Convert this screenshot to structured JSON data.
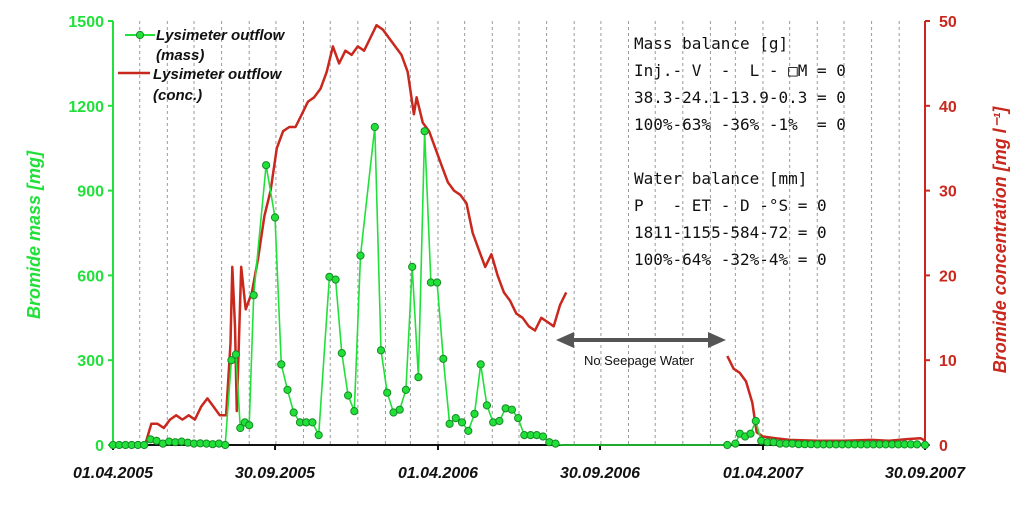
{
  "chart_data": {
    "type": "line",
    "title": "",
    "xlabel": "",
    "ylabel_left": "Bromide mass [mg]",
    "ylabel_right": "Bromide concentration [mg l⁻¹]",
    "x_ticks": [
      "01.04.2005",
      "30.09.2005",
      "01.04.2006",
      "30.09.2006",
      "01.04.2007",
      "30.09.2007"
    ],
    "x_range": [
      "2005-04-01",
      "2007-09-30"
    ],
    "ylim_left": [
      0,
      1500
    ],
    "ylim_right": [
      0,
      50
    ],
    "y_ticks_left": [
      0,
      300,
      600,
      900,
      1200,
      1500
    ],
    "y_ticks_right": [
      0,
      10,
      20,
      30,
      40,
      50
    ],
    "grid": "vertical dashed",
    "legend_position": "top-left",
    "colors": {
      "mass": "#22e03a",
      "conc": "#c8281e"
    },
    "series": [
      {
        "name": "Lysimeter outflow (mass)",
        "axis": "left",
        "marker": "circle",
        "points": [
          [
            "2005-04-01",
            0
          ],
          [
            "2005-04-08",
            0
          ],
          [
            "2005-04-15",
            0
          ],
          [
            "2005-04-22",
            0
          ],
          [
            "2005-04-29",
            0
          ],
          [
            "2005-05-06",
            0
          ],
          [
            "2005-05-13",
            20
          ],
          [
            "2005-05-20",
            15
          ],
          [
            "2005-05-27",
            5
          ],
          [
            "2005-06-03",
            12
          ],
          [
            "2005-06-10",
            10
          ],
          [
            "2005-06-17",
            12
          ],
          [
            "2005-06-24",
            8
          ],
          [
            "2005-07-01",
            5
          ],
          [
            "2005-07-08",
            6
          ],
          [
            "2005-07-15",
            5
          ],
          [
            "2005-07-22",
            3
          ],
          [
            "2005-07-29",
            5
          ],
          [
            "2005-08-05",
            0
          ],
          [
            "2005-08-12",
            300
          ],
          [
            "2005-08-17",
            320
          ],
          [
            "2005-08-22",
            60
          ],
          [
            "2005-08-27",
            80
          ],
          [
            "2005-09-01",
            70
          ],
          [
            "2005-09-06",
            530
          ],
          [
            "2005-09-20",
            990
          ],
          [
            "2005-09-30",
            805
          ],
          [
            "2005-10-07",
            285
          ],
          [
            "2005-10-14",
            195
          ],
          [
            "2005-10-21",
            115
          ],
          [
            "2005-10-28",
            80
          ],
          [
            "2005-11-04",
            80
          ],
          [
            "2005-11-11",
            80
          ],
          [
            "2005-11-18",
            35
          ],
          [
            "2005-11-30",
            595
          ],
          [
            "2005-12-07",
            585
          ],
          [
            "2005-12-14",
            325
          ],
          [
            "2005-12-21",
            175
          ],
          [
            "2005-12-28",
            120
          ],
          [
            "2006-01-04",
            670
          ],
          [
            "2006-01-20",
            1125
          ],
          [
            "2006-01-27",
            335
          ],
          [
            "2006-02-03",
            185
          ],
          [
            "2006-02-10",
            115
          ],
          [
            "2006-02-17",
            125
          ],
          [
            "2006-02-24",
            195
          ],
          [
            "2006-03-03",
            630
          ],
          [
            "2006-03-10",
            240
          ],
          [
            "2006-03-17",
            1110
          ],
          [
            "2006-03-24",
            575
          ],
          [
            "2006-03-31",
            575
          ],
          [
            "2006-04-07",
            305
          ],
          [
            "2006-04-14",
            75
          ],
          [
            "2006-04-21",
            95
          ],
          [
            "2006-04-28",
            80
          ],
          [
            "2006-05-05",
            50
          ],
          [
            "2006-05-12",
            110
          ],
          [
            "2006-05-19",
            285
          ],
          [
            "2006-05-26",
            140
          ],
          [
            "2006-06-02",
            80
          ],
          [
            "2006-06-09",
            85
          ],
          [
            "2006-06-16",
            130
          ],
          [
            "2006-06-23",
            125
          ],
          [
            "2006-06-30",
            95
          ],
          [
            "2006-07-07",
            35
          ],
          [
            "2006-07-14",
            35
          ],
          [
            "2006-07-21",
            35
          ],
          [
            "2006-07-28",
            30
          ],
          [
            "2006-08-04",
            10
          ],
          [
            "2006-08-11",
            5
          ],
          [
            "2006-08-18",
            0
          ],
          [
            "2006-09-30",
            0
          ],
          [
            "2006-12-31",
            0
          ],
          [
            "2007-02-20",
            0
          ],
          [
            "2007-03-01",
            5
          ],
          [
            "2007-03-06",
            40
          ],
          [
            "2007-03-12",
            30
          ],
          [
            "2007-03-18",
            40
          ],
          [
            "2007-03-24",
            85
          ],
          [
            "2007-03-30",
            15
          ],
          [
            "2007-04-06",
            10
          ],
          [
            "2007-04-13",
            10
          ],
          [
            "2007-04-20",
            5
          ],
          [
            "2007-04-27",
            5
          ],
          [
            "2007-05-04",
            5
          ],
          [
            "2007-05-11",
            3
          ],
          [
            "2007-05-18",
            3
          ],
          [
            "2007-05-25",
            3
          ],
          [
            "2007-06-01",
            2
          ],
          [
            "2007-06-08",
            2
          ],
          [
            "2007-06-15",
            2
          ],
          [
            "2007-06-22",
            2
          ],
          [
            "2007-06-29",
            2
          ],
          [
            "2007-07-06",
            2
          ],
          [
            "2007-07-13",
            2
          ],
          [
            "2007-07-20",
            2
          ],
          [
            "2007-07-27",
            2
          ],
          [
            "2007-08-03",
            2
          ],
          [
            "2007-08-10",
            2
          ],
          [
            "2007-08-17",
            2
          ],
          [
            "2007-08-24",
            2
          ],
          [
            "2007-08-31",
            2
          ],
          [
            "2007-09-07",
            2
          ],
          [
            "2007-09-14",
            2
          ],
          [
            "2007-09-21",
            2
          ],
          [
            "2007-09-30",
            0
          ]
        ]
      },
      {
        "name": "Lysimeter outflow (conc.)",
        "axis": "right",
        "segments": [
          [
            [
              "2005-05-07",
              0
            ],
            [
              "2005-05-14",
              2.5
            ],
            [
              "2005-05-21",
              2.5
            ],
            [
              "2005-05-28",
              2.0
            ],
            [
              "2005-06-04",
              3.0
            ],
            [
              "2005-06-11",
              3.5
            ],
            [
              "2005-06-18",
              3.0
            ],
            [
              "2005-06-25",
              3.5
            ],
            [
              "2005-07-02",
              3.0
            ],
            [
              "2005-07-09",
              4.5
            ],
            [
              "2005-07-16",
              5.5
            ],
            [
              "2005-07-23",
              4.5
            ],
            [
              "2005-07-30",
              3.5
            ],
            [
              "2005-08-06",
              3.5
            ],
            [
              "2005-08-11",
              12
            ],
            [
              "2005-08-13",
              21
            ],
            [
              "2005-08-16",
              14
            ],
            [
              "2005-08-18",
              4
            ],
            [
              "2005-08-23",
              21
            ],
            [
              "2005-08-28",
              16
            ],
            [
              "2005-09-04",
              18
            ],
            [
              "2005-09-11",
              22
            ],
            [
              "2005-09-18",
              27
            ],
            [
              "2005-09-25",
              30
            ],
            [
              "2005-10-02",
              35
            ],
            [
              "2005-10-09",
              37
            ],
            [
              "2005-10-16",
              37.5
            ],
            [
              "2005-10-23",
              37.5
            ],
            [
              "2005-10-30",
              39
            ],
            [
              "2005-11-06",
              40.5
            ],
            [
              "2005-11-13",
              41
            ],
            [
              "2005-11-20",
              42
            ],
            [
              "2005-11-27",
              44
            ],
            [
              "2005-12-04",
              47
            ],
            [
              "2005-12-11",
              45
            ],
            [
              "2005-12-18",
              46.5
            ],
            [
              "2005-12-25",
              46
            ],
            [
              "2006-01-01",
              47
            ],
            [
              "2006-01-08",
              46.5
            ],
            [
              "2006-01-15",
              48
            ],
            [
              "2006-01-22",
              49.5
            ],
            [
              "2006-01-29",
              49
            ],
            [
              "2006-02-05",
              48
            ],
            [
              "2006-02-12",
              47
            ],
            [
              "2006-02-19",
              46
            ],
            [
              "2006-02-26",
              44
            ],
            [
              "2006-03-05",
              39
            ],
            [
              "2006-03-08",
              41
            ],
            [
              "2006-03-15",
              38
            ],
            [
              "2006-03-22",
              37
            ],
            [
              "2006-03-29",
              35
            ],
            [
              "2006-04-05",
              33
            ],
            [
              "2006-04-12",
              31
            ],
            [
              "2006-04-19",
              30
            ],
            [
              "2006-04-26",
              29.5
            ],
            [
              "2006-05-03",
              28.5
            ],
            [
              "2006-05-10",
              25
            ],
            [
              "2006-05-17",
              23
            ],
            [
              "2006-05-24",
              21
            ],
            [
              "2006-05-31",
              22.5
            ],
            [
              "2006-06-07",
              20
            ],
            [
              "2006-06-14",
              18
            ],
            [
              "2006-06-21",
              17
            ],
            [
              "2006-06-28",
              15.5
            ],
            [
              "2006-07-05",
              15
            ],
            [
              "2006-07-12",
              14
            ],
            [
              "2006-07-19",
              13.5
            ],
            [
              "2006-07-26",
              15
            ],
            [
              "2006-08-02",
              14.5
            ],
            [
              "2006-08-09",
              14
            ],
            [
              "2006-08-16",
              16.5
            ],
            [
              "2006-08-23",
              18
            ]
          ],
          [
            [
              "2007-02-20",
              10.5
            ],
            [
              "2007-02-27",
              9
            ],
            [
              "2007-03-06",
              8.5
            ],
            [
              "2007-03-13",
              7.5
            ],
            [
              "2007-03-20",
              5
            ],
            [
              "2007-03-25",
              1.5
            ],
            [
              "2007-04-01",
              1.0
            ],
            [
              "2007-04-15",
              0.8
            ],
            [
              "2007-05-01",
              0.6
            ],
            [
              "2007-06-01",
              0.5
            ],
            [
              "2007-07-01",
              0.5
            ],
            [
              "2007-08-01",
              0.6
            ],
            [
              "2007-08-20",
              0.5
            ],
            [
              "2007-09-10",
              0.7
            ],
            [
              "2007-09-25",
              0.8
            ],
            [
              "2007-09-30",
              0.5
            ]
          ]
        ]
      }
    ],
    "annotations": {
      "gap_label": "No Seepage Water",
      "mass_balance": [
        "Mass balance [g]",
        "Inj.- V  -  L - □M = 0",
        "38.3-24.1-13.9-0.3 = 0",
        "100%-63% -36% -1%  = 0"
      ],
      "water_balance": [
        "Water balance [mm]",
        "P   - ET - D -°S = 0",
        "1811-1155-584-72 = 0",
        "100%-64% -32%-4% = 0"
      ]
    }
  }
}
